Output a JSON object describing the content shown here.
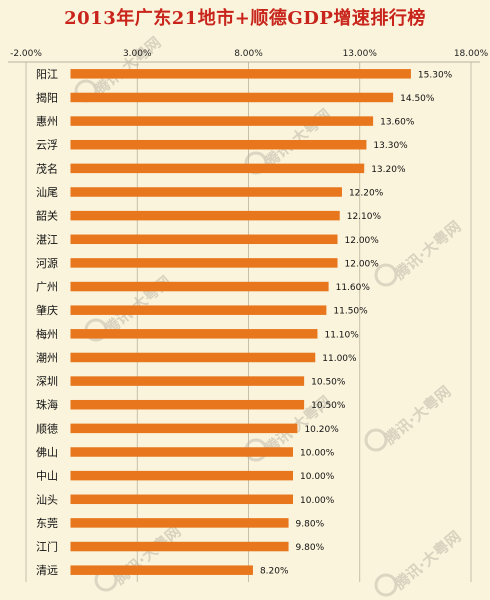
{
  "colors": {
    "bar": "#e8761c",
    "title": "#c8241b",
    "background": "#faf4dc",
    "grid": "#b9b39f"
  },
  "chart_data": {
    "type": "bar",
    "orientation": "horizontal",
    "title": "2013年广东21地市+顺德GDP增速排行榜",
    "xlabel": "",
    "ylabel": "",
    "xlim": [
      -2,
      18
    ],
    "xticks": [
      "-2.00%",
      "3.00%",
      "8.00%",
      "13.00%",
      "18.00%"
    ],
    "xtick_values": [
      -2,
      3,
      8,
      13,
      18
    ],
    "axis_position": "top",
    "grid": true,
    "categories": [
      "阳江",
      "揭阳",
      "惠州",
      "云浮",
      "茂名",
      "汕尾",
      "韶关",
      "湛江",
      "河源",
      "广州",
      "肇庆",
      "梅州",
      "潮州",
      "深圳",
      "珠海",
      "顺德",
      "佛山",
      "中山",
      "汕头",
      "东莞",
      "江门",
      "清远"
    ],
    "values": [
      15.3,
      14.5,
      13.6,
      13.3,
      13.2,
      12.2,
      12.1,
      12.0,
      12.0,
      11.6,
      11.5,
      11.1,
      11.0,
      10.5,
      10.5,
      10.2,
      10.0,
      10.0,
      10.0,
      9.8,
      9.8,
      8.2
    ],
    "data_labels": [
      "15.30%",
      "14.50%",
      "13.60%",
      "13.30%",
      "13.20%",
      "12.20%",
      "12.10%",
      "12.00%",
      "12.00%",
      "11.60%",
      "11.50%",
      "11.10%",
      "11.00%",
      "10.50%",
      "10.50%",
      "10.20%",
      "10.00%",
      "10.00%",
      "10.00%",
      "9.80%",
      "9.80%",
      "8.20%"
    ]
  },
  "watermark": {
    "text": "腾讯·大粤网"
  }
}
